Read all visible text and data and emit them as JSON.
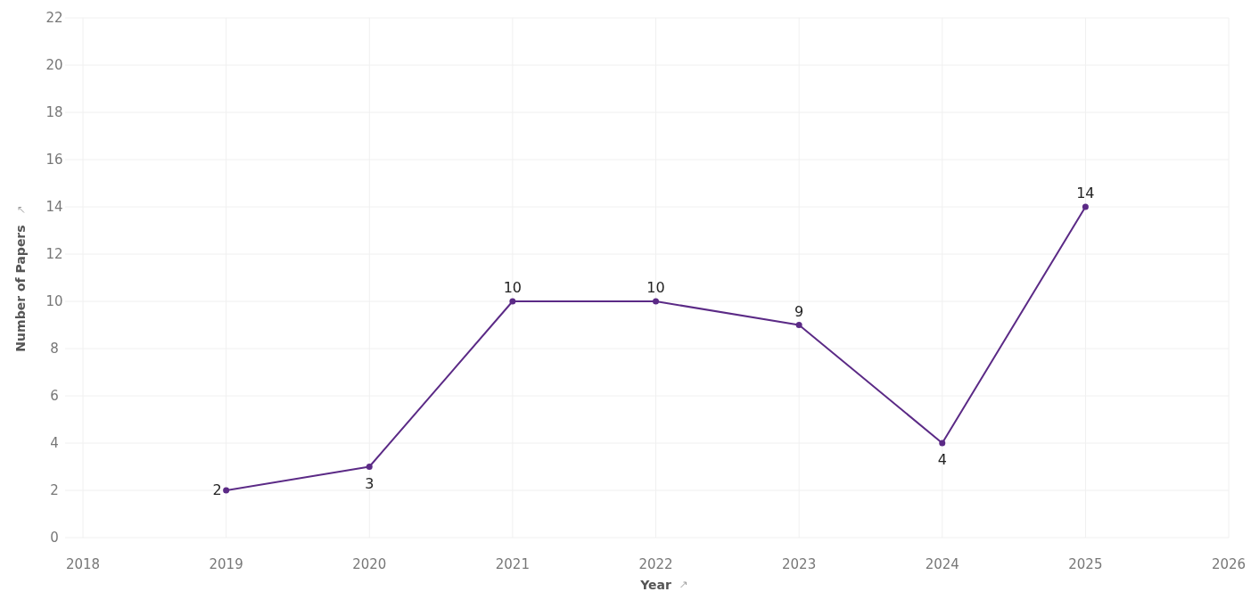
{
  "chart_data": {
    "type": "line",
    "xlabel": "Year",
    "ylabel": "Number of Papers",
    "x": [
      2019,
      2020,
      2021,
      2022,
      2023,
      2024,
      2025
    ],
    "series": [
      {
        "color": "#5b2a86",
        "values": [
          2,
          3,
          10,
          10,
          9,
          4,
          14
        ]
      }
    ],
    "xlim": [
      2018,
      2026
    ],
    "xticks": [
      2018,
      2019,
      2020,
      2021,
      2022,
      2023,
      2024,
      2025,
      2026
    ],
    "ylim": [
      0,
      22
    ],
    "yticks": [
      0,
      2,
      4,
      6,
      8,
      10,
      12,
      14,
      16,
      18,
      20,
      22
    ],
    "grid": true,
    "data_labels": true,
    "marker": "circle",
    "line_style": "solid"
  }
}
